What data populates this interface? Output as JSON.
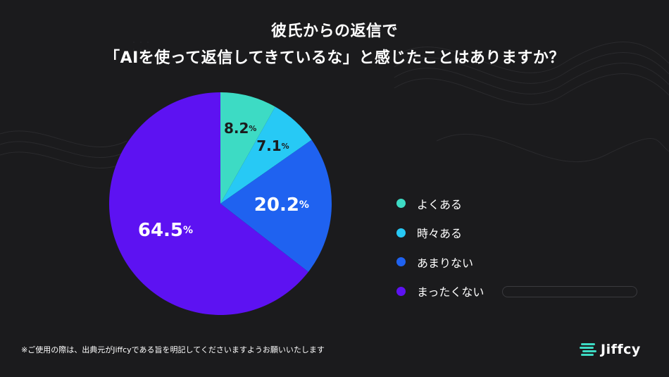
{
  "title_lines": [
    "彼氏からの返信で",
    "「AIを使って返信してきているな」と感じたことはありますか？"
  ],
  "chart_data": {
    "type": "pie",
    "title": "彼氏からの返信で「AIを使って返信してきているな」と感じたことはありますか？",
    "categories": [
      "よくある",
      "時々ある",
      "あまりない",
      "まったくない"
    ],
    "values": [
      8.2,
      7.1,
      20.2,
      64.5
    ],
    "unit": "%",
    "colors": [
      "#3ddbc4",
      "#27c9f5",
      "#1f62f0",
      "#5d12f2"
    ],
    "legend_position": "right"
  },
  "footnote": "※ご使用の際は、出典元がJiffcyである旨を明記してくださいますようお願いいたします",
  "brand": {
    "name": "Jiffcy",
    "logo_icon": "jiffcy-stripes-icon"
  }
}
